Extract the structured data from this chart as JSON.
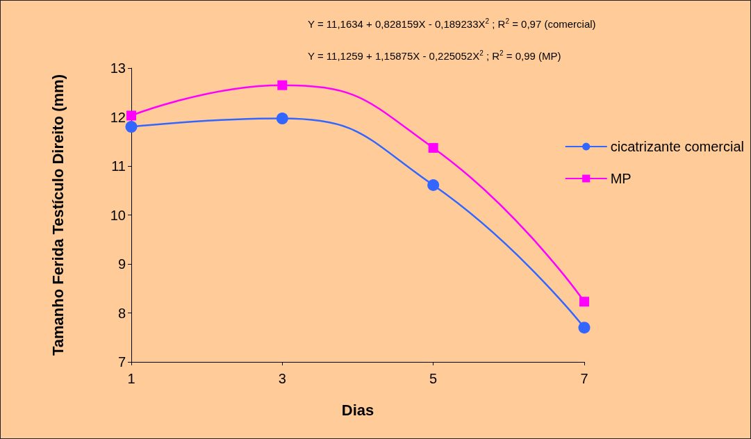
{
  "chart_data": {
    "type": "line",
    "xlabel": "Dias",
    "ylabel": "Tamanho Ferida Testículo Direito (mm)",
    "x": [
      1,
      3,
      5,
      7
    ],
    "series": [
      {
        "name": "cicatrizante comercial",
        "color": "#3366ff",
        "marker": "circle",
        "values": [
          11.8,
          11.97,
          10.61,
          7.7
        ]
      },
      {
        "name": "MP",
        "color": "#ff00ff",
        "marker": "square",
        "values": [
          12.03,
          12.65,
          11.37,
          8.23
        ]
      }
    ],
    "xlim": [
      1,
      7
    ],
    "xticks": [
      1,
      3,
      5,
      7
    ],
    "ylim": [
      7,
      13
    ],
    "yticks": [
      7,
      8,
      9,
      10,
      11,
      12,
      13
    ],
    "grid": false,
    "legend": "right",
    "annotations": [
      "Y = 11,1634 + 0,828159X - 0,189233X$^{2}$ ; R$^{2}$ = 0,97 (comercial)",
      "Y = 11,1259 + 1,15875X - 0,225052X$^{2}$ ; R$^{2}$ = 0,99 (MP)"
    ]
  }
}
